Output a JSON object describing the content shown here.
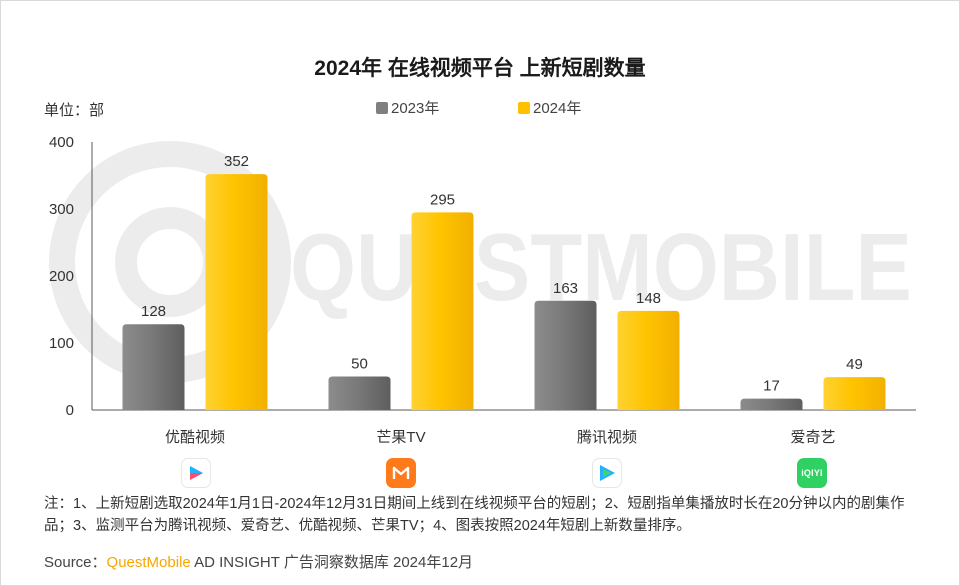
{
  "title": "2024年 在线视频平台 上新短剧数量",
  "unit_label": "单位：部",
  "watermark": "QUESTMOBILE",
  "legend": [
    {
      "label": "2023年",
      "color": "#7f7f7f"
    },
    {
      "label": "2024年",
      "color": "#ffc000"
    }
  ],
  "chart_data": {
    "type": "bar",
    "categories": [
      "优酷视频",
      "芒果TV",
      "腾讯视频",
      "爱奇艺"
    ],
    "series": [
      {
        "name": "2023年",
        "values": [
          128,
          50,
          163,
          17
        ],
        "color": "#7f7f7f"
      },
      {
        "name": "2024年",
        "values": [
          352,
          295,
          148,
          49
        ],
        "color": "#ffc000"
      }
    ],
    "ylim": [
      0,
      400
    ],
    "yticks": [
      0,
      100,
      200,
      300,
      400
    ],
    "grid": false,
    "legend_position": "top"
  },
  "app_icons": [
    {
      "name": "youku-icon"
    },
    {
      "name": "mgtv-icon"
    },
    {
      "name": "tencent-video-icon"
    },
    {
      "name": "iqiyi-icon",
      "text": "iQIYI"
    }
  ],
  "note": "注：1、上新短剧选取2024年1月1日-2024年12月31日期间上线到在线视频平台的短剧；2、短剧指单集播放时长在20分钟以内的剧集作品；3、监测平台为腾讯视频、爱奇艺、优酷视频、芒果TV；4、图表按照2024年短剧上新数量排序。",
  "source": {
    "prefix": "Source：",
    "brand": "QuestMobile",
    "suffix": " AD INSIGHT 广告洞察数据库 2024年12月"
  }
}
